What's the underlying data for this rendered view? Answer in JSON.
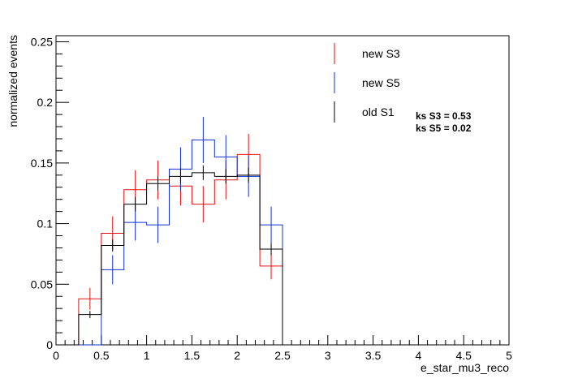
{
  "chart_data": {
    "type": "histogram",
    "title": "",
    "xlabel": "e_star_mu3_reco",
    "ylabel": "normalized events",
    "xlim": [
      0,
      5
    ],
    "ylim": [
      0,
      0.255
    ],
    "x_ticks": [
      "0",
      "0.5",
      "1",
      "1.5",
      "2",
      "2.5",
      "3",
      "3.5",
      "4",
      "4.5",
      "5"
    ],
    "y_ticks": [
      "0",
      "0.05",
      "0.1",
      "0.15",
      "0.2",
      "0.25"
    ],
    "bin_edges": [
      0,
      0.25,
      0.5,
      0.75,
      1.0,
      1.25,
      1.5,
      1.75,
      2.0,
      2.25,
      2.5,
      2.75,
      3.0,
      3.25,
      3.5,
      3.75,
      4.0,
      4.25,
      4.5,
      4.75,
      5.0
    ],
    "series": [
      {
        "name": "new S3",
        "color": "#e01010",
        "draw": "histogram-with-error-bars",
        "values": [
          0,
          0.038,
          0.092,
          0.128,
          0.136,
          0.131,
          0.116,
          0.136,
          0.157,
          0.065,
          0,
          0,
          0,
          0,
          0,
          0,
          0,
          0,
          0,
          0
        ],
        "errors": [
          0,
          0.009,
          0.014,
          0.016,
          0.016,
          0.016,
          0.015,
          0.016,
          0.017,
          0.011,
          0,
          0,
          0,
          0,
          0,
          0,
          0,
          0,
          0,
          0
        ]
      },
      {
        "name": "new S5",
        "color": "#1030d0",
        "draw": "histogram-with-error-bars",
        "values": [
          0,
          0,
          0.062,
          0.101,
          0.099,
          0.145,
          0.169,
          0.155,
          0.139,
          0.099,
          0,
          0,
          0,
          0,
          0,
          0,
          0,
          0,
          0,
          0
        ],
        "errors": [
          0,
          0,
          0.012,
          0.015,
          0.015,
          0.018,
          0.019,
          0.018,
          0.017,
          0.015,
          0,
          0,
          0,
          0,
          0,
          0,
          0,
          0,
          0,
          0
        ]
      },
      {
        "name": "old S1",
        "color": "#000000",
        "draw": "histogram-with-error-bars",
        "values": [
          0,
          0.025,
          0.082,
          0.116,
          0.133,
          0.139,
          0.142,
          0.139,
          0.14,
          0.079,
          0,
          0,
          0,
          0,
          0,
          0,
          0,
          0,
          0,
          0
        ],
        "errors": [
          0,
          0.003,
          0.005,
          0.006,
          0.006,
          0.006,
          0.006,
          0.006,
          0.006,
          0.005,
          0,
          0,
          0,
          0,
          0,
          0,
          0,
          0,
          0,
          0
        ]
      }
    ],
    "legend": {
      "placement": "top-right",
      "entries": [
        "new S3",
        "new S5",
        "old S1"
      ]
    },
    "annotations": [
      "ks S3 = 0.53",
      "ks S5 = 0.02"
    ]
  }
}
